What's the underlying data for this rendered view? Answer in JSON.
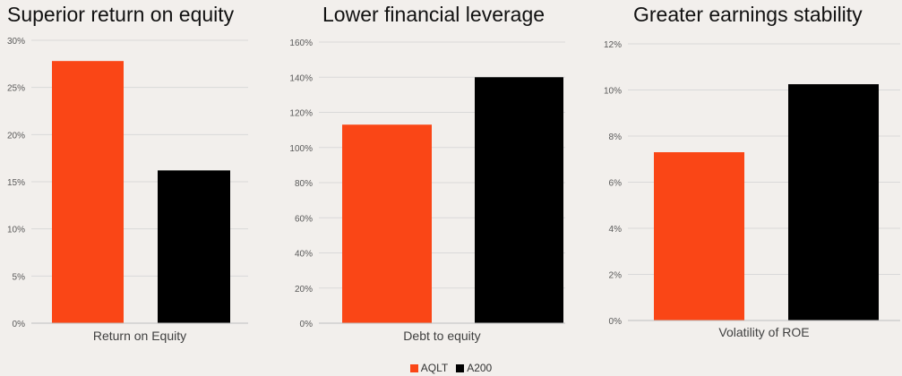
{
  "colors": {
    "AQLT": "#fa4616",
    "A200": "#000000",
    "grid": "#d9d9d9",
    "axis": "#bfbfbf",
    "tick": "#595959",
    "category": "#404040"
  },
  "legend": [
    {
      "name": "AQLT",
      "color": "#fa4616"
    },
    {
      "name": "A200",
      "color": "#000000"
    }
  ],
  "chart_data": [
    {
      "type": "bar",
      "title": "Superior return on equity",
      "categories": [
        "Return on Equity"
      ],
      "series": [
        {
          "name": "AQLT",
          "values": [
            27.8
          ]
        },
        {
          "name": "A200",
          "values": [
            16.2
          ]
        }
      ],
      "ylim": [
        0,
        30
      ],
      "yticks": [
        0,
        5,
        10,
        15,
        20,
        25,
        30
      ],
      "ytick_labels": [
        "0%",
        "5%",
        "10%",
        "15%",
        "20%",
        "25%",
        "30%"
      ],
      "xlabel": "",
      "ylabel": "",
      "grid": true,
      "legend": "bottom"
    },
    {
      "type": "bar",
      "title": "Lower financial leverage",
      "categories": [
        "Debt to equity"
      ],
      "series": [
        {
          "name": "AQLT",
          "values": [
            113
          ]
        },
        {
          "name": "A200",
          "values": [
            140
          ]
        }
      ],
      "ylim": [
        0,
        160
      ],
      "yticks": [
        0,
        20,
        40,
        60,
        80,
        100,
        120,
        140,
        160
      ],
      "ytick_labels": [
        "0%",
        "20%",
        "40%",
        "60%",
        "80%",
        "100%",
        "120%",
        "140%",
        "160%"
      ],
      "xlabel": "",
      "ylabel": "",
      "grid": true,
      "legend": "bottom"
    },
    {
      "type": "bar",
      "title": "Greater earnings stability",
      "categories": [
        "Volatility of ROE"
      ],
      "series": [
        {
          "name": "AQLT",
          "values": [
            7.3
          ]
        },
        {
          "name": "A200",
          "values": [
            10.25
          ]
        }
      ],
      "ylim": [
        0,
        12
      ],
      "yticks": [
        0,
        2,
        4,
        6,
        8,
        10,
        12
      ],
      "ytick_labels": [
        "0%",
        "2%",
        "4%",
        "6%",
        "8%",
        "10%",
        "12%"
      ],
      "xlabel": "",
      "ylabel": "",
      "grid": true,
      "legend": "bottom"
    }
  ]
}
